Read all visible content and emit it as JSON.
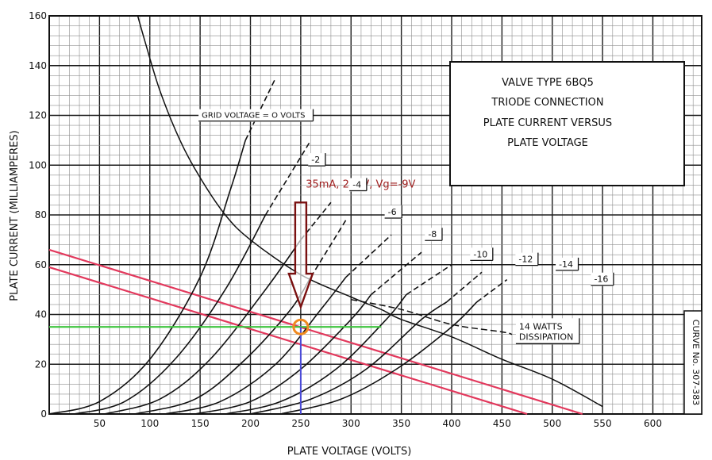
{
  "chart_data": {
    "type": "line",
    "title": [
      "VALVE TYPE 6BQ5",
      "TRIODE CONNECTION",
      "PLATE CURRENT VERSUS",
      "PLATE VOLTAGE"
    ],
    "xlabel": "PLATE VOLTAGE (VOLTS)",
    "ylabel": "PLATE CURRENT (MILLIAMPERES)",
    "xlim": [
      0,
      650
    ],
    "ylim": [
      0,
      160
    ],
    "x_ticks": [
      50,
      100,
      150,
      200,
      250,
      300,
      350,
      400,
      450,
      500,
      550,
      600
    ],
    "y_ticks": [
      0,
      20,
      40,
      60,
      80,
      100,
      120,
      140,
      160
    ],
    "grid": true,
    "curve_label": "CURVE No. 307-383",
    "grid_curves": [
      {
        "label": "GRID VOLTAGE = O VOLTS",
        "points": [
          [
            0,
            0
          ],
          [
            50,
            5
          ],
          [
            100,
            22
          ],
          [
            150,
            55
          ],
          [
            180,
            90
          ],
          [
            195,
            110
          ]
        ],
        "dash_points": [
          [
            195,
            110
          ],
          [
            225,
            135
          ]
        ],
        "label_at": [
          150,
          119
        ]
      },
      {
        "label": "-2",
        "points": [
          [
            25,
            0
          ],
          [
            75,
            5
          ],
          [
            125,
            22
          ],
          [
            175,
            50
          ],
          [
            215,
            80
          ]
        ],
        "dash_points": [
          [
            215,
            80
          ],
          [
            260,
            110
          ]
        ],
        "label_at": [
          259,
          101
        ]
      },
      {
        "label": "-4",
        "points": [
          [
            55,
            0
          ],
          [
            110,
            6
          ],
          [
            160,
            22
          ],
          [
            215,
            50
          ],
          [
            250,
            70
          ]
        ],
        "dash_points": [
          [
            250,
            70
          ],
          [
            280,
            85
          ]
        ],
        "label_at": [
          300,
          91
        ]
      },
      {
        "label": "-6",
        "points": [
          [
            85,
            0
          ],
          [
            145,
            6
          ],
          [
            195,
            22
          ],
          [
            240,
            42
          ],
          [
            260,
            55
          ]
        ],
        "dash_points": [
          [
            260,
            55
          ],
          [
            295,
            78
          ]
        ],
        "label_at": [
          335,
          80
        ]
      },
      {
        "label": "-8",
        "points": [
          [
            115,
            0
          ],
          [
            170,
            5
          ],
          [
            225,
            20
          ],
          [
            270,
            42
          ],
          [
            295,
            55
          ]
        ],
        "dash_points": [
          [
            295,
            55
          ],
          [
            340,
            72
          ]
        ],
        "label_at": [
          375,
          71
        ]
      },
      {
        "label": "-10",
        "points": [
          [
            145,
            0
          ],
          [
            200,
            5
          ],
          [
            250,
            18
          ],
          [
            300,
            38
          ],
          [
            320,
            48
          ]
        ],
        "dash_points": [
          [
            320,
            48
          ],
          [
            370,
            65
          ]
        ],
        "label_at": [
          420,
          63
        ]
      },
      {
        "label": "-12",
        "points": [
          [
            175,
            0
          ],
          [
            230,
            5
          ],
          [
            285,
            18
          ],
          [
            335,
            38
          ],
          [
            355,
            48
          ]
        ],
        "dash_points": [
          [
            355,
            48
          ],
          [
            400,
            60
          ]
        ],
        "label_at": [
          465,
          61
        ]
      },
      {
        "label": "-14",
        "points": [
          [
            200,
            0
          ],
          [
            260,
            6
          ],
          [
            315,
            18
          ],
          [
            370,
            38
          ],
          [
            395,
            45
          ]
        ],
        "dash_points": [
          [
            395,
            45
          ],
          [
            430,
            57
          ]
        ],
        "label_at": [
          505,
          59
        ]
      },
      {
        "label": "-16",
        "points": [
          [
            230,
            0
          ],
          [
            290,
            6
          ],
          [
            345,
            18
          ],
          [
            400,
            35
          ],
          [
            425,
            45
          ]
        ],
        "dash_points": [
          [
            425,
            45
          ],
          [
            455,
            54
          ]
        ],
        "label_at": [
          540,
          53
        ]
      }
    ],
    "dissipation": {
      "label": [
        "14 WATTS",
        "DISSIPATION"
      ],
      "solid_points": [
        [
          88,
          160
        ],
        [
          95,
          150
        ],
        [
          110,
          130
        ],
        [
          130,
          110
        ],
        [
          150,
          95
        ],
        [
          175,
          80
        ],
        [
          200,
          70
        ],
        [
          250,
          56
        ],
        [
          300,
          47
        ],
        [
          330,
          42
        ],
        [
          350,
          38
        ],
        [
          400,
          31
        ],
        [
          450,
          22
        ],
        [
          500,
          14
        ],
        [
          550,
          3
        ]
      ],
      "dash_points": [
        [
          300,
          46
        ],
        [
          350,
          42
        ],
        [
          400,
          36
        ],
        [
          450,
          33
        ],
        [
          460,
          32
        ]
      ],
      "label_at": [
        467,
        34
      ]
    },
    "load_lines": [
      {
        "points": [
          [
            0,
            66
          ],
          [
            530,
            0
          ]
        ]
      },
      {
        "points": [
          [
            0,
            59
          ],
          [
            475,
            0
          ]
        ]
      }
    ],
    "operating_point": {
      "current_ma": 35,
      "plate_v": 250,
      "text": "35mA, 250V, Vg=-9V",
      "label_at": [
        255,
        91
      ],
      "current_line": [
        0,
        330
      ],
      "arrow_from": 85,
      "arrow_to": 43
    },
    "colors": {
      "grid_minor": "#8c8c8c",
      "grid_major": "#1c1c1c",
      "curve": "#111111",
      "load_line": "#e2385c",
      "current_line": "#3ec43e",
      "voltage_line": "#4a4ad8",
      "marker": "#f08a20",
      "arrow": "#7a1010",
      "annotation": "#a02020"
    }
  }
}
